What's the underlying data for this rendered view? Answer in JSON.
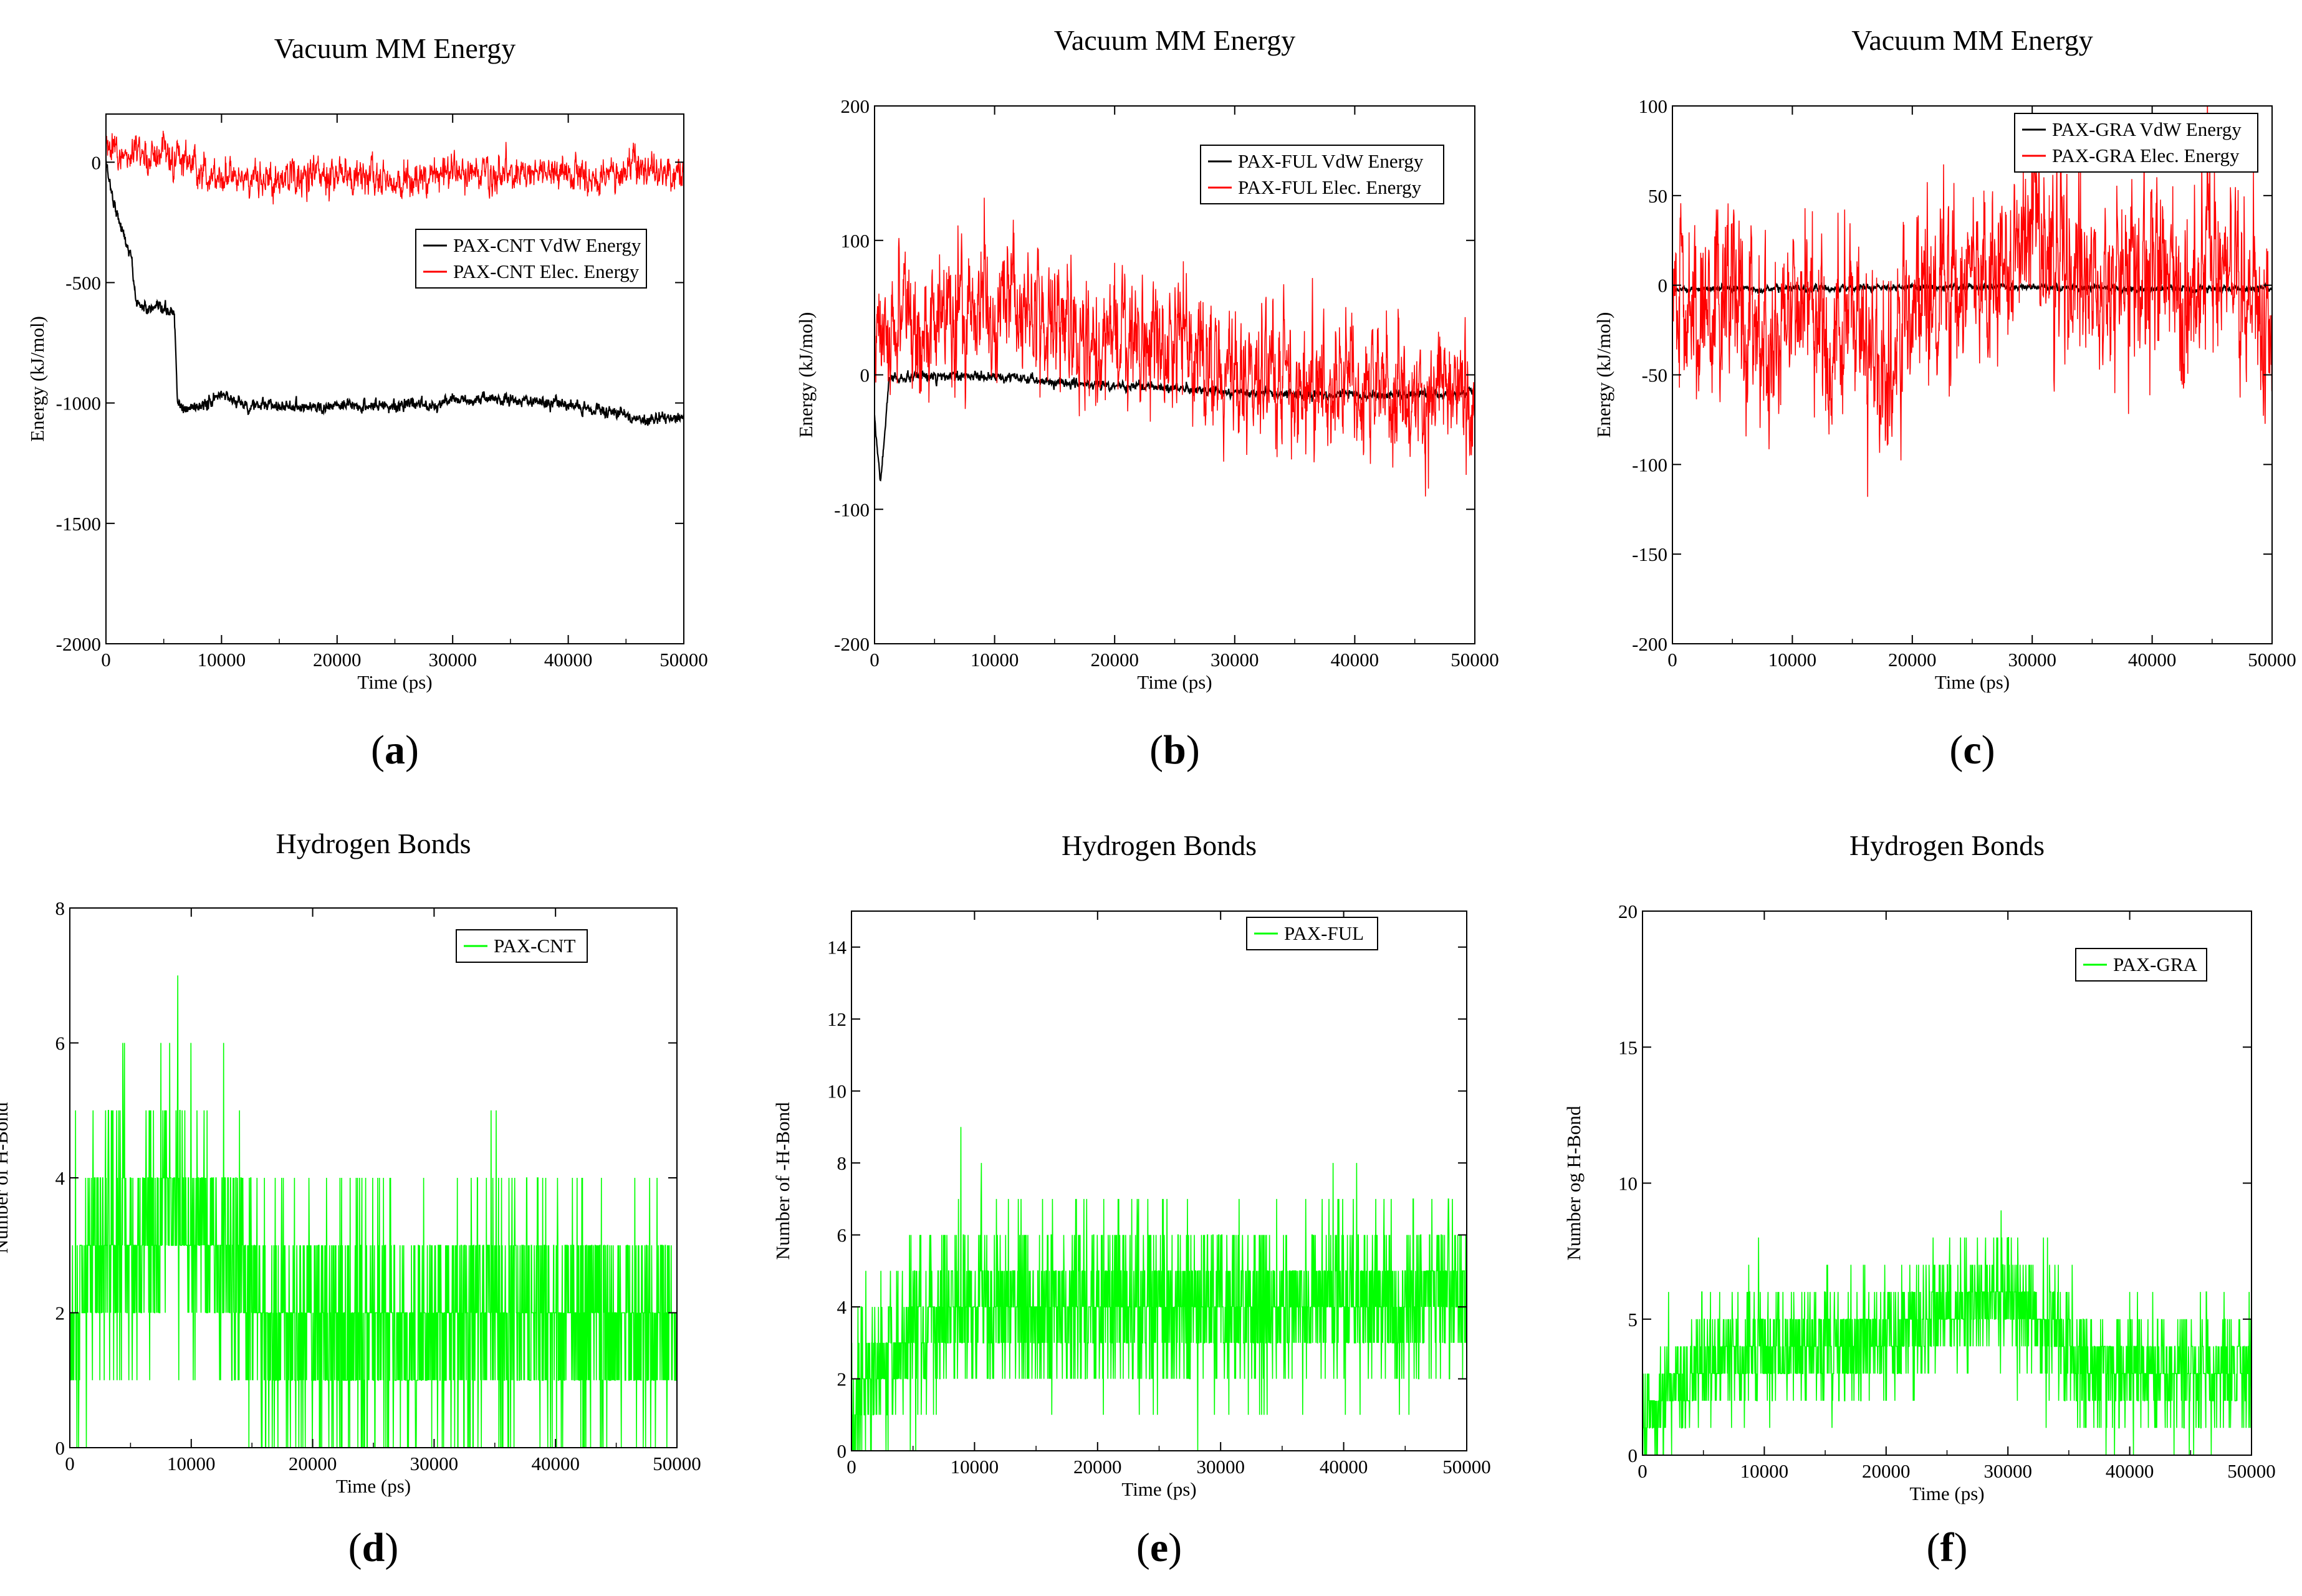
{
  "figure": {
    "panel_labels": [
      "a",
      "b",
      "c",
      "d",
      "e",
      "f"
    ]
  },
  "chart_data": [
    {
      "id": "a",
      "type": "line",
      "title": "Vacuum MM Energy",
      "xlabel": "Time (ps)",
      "ylabel": "Energy (kJ/mol)",
      "xlim": [
        0,
        50000
      ],
      "ylim": [
        -2000,
        200
      ],
      "xticks": [
        0,
        10000,
        20000,
        30000,
        40000,
        50000
      ],
      "yticks": [
        -2000,
        -1500,
        -1000,
        -500,
        0
      ],
      "legend_position": "middle-right",
      "series": [
        {
          "name": "PAX-CNT VdW Energy",
          "color": "#000000",
          "noise": 15,
          "points": [
            [
              0,
              0
            ],
            [
              600,
              -150
            ],
            [
              1500,
              -300
            ],
            [
              2200,
              -400
            ],
            [
              2600,
              -580
            ],
            [
              3500,
              -610
            ],
            [
              5900,
              -620
            ],
            [
              6200,
              -1000
            ],
            [
              6600,
              -1030
            ],
            [
              9000,
              -1000
            ],
            [
              10000,
              -960
            ],
            [
              12000,
              -1010
            ],
            [
              20000,
              -1015
            ],
            [
              28000,
              -1005
            ],
            [
              30000,
              -990
            ],
            [
              35000,
              -985
            ],
            [
              40000,
              -1010
            ],
            [
              44000,
              -1040
            ],
            [
              46000,
              -1070
            ],
            [
              50000,
              -1060
            ]
          ]
        },
        {
          "name": "PAX-CNT Elec. Energy",
          "color": "#ff0000",
          "noise": 45,
          "points": [
            [
              0,
              60
            ],
            [
              2000,
              20
            ],
            [
              4000,
              40
            ],
            [
              6000,
              20
            ],
            [
              8000,
              -30
            ],
            [
              10000,
              -60
            ],
            [
              14000,
              -80
            ],
            [
              18000,
              -40
            ],
            [
              22000,
              -60
            ],
            [
              26000,
              -80
            ],
            [
              30000,
              -40
            ],
            [
              34000,
              -60
            ],
            [
              38000,
              -30
            ],
            [
              42000,
              -70
            ],
            [
              46000,
              -30
            ],
            [
              50000,
              -50
            ]
          ]
        }
      ]
    },
    {
      "id": "b",
      "type": "line",
      "title": "Vacuum MM Energy",
      "xlabel": "Time (ps)",
      "ylabel": "Energy (kJ/mol)",
      "xlim": [
        0,
        50000
      ],
      "ylim": [
        -200,
        200
      ],
      "xticks": [
        0,
        10000,
        20000,
        30000,
        40000,
        50000
      ],
      "yticks": [
        -200,
        -100,
        0,
        100,
        200
      ],
      "legend_position": "top-right",
      "series": [
        {
          "name": "PAX-FUL VdW Energy",
          "color": "#000000",
          "noise": 2,
          "points": [
            [
              0,
              -30
            ],
            [
              200,
              -55
            ],
            [
              500,
              -80
            ],
            [
              800,
              -50
            ],
            [
              1200,
              -3
            ],
            [
              4000,
              -2
            ],
            [
              8000,
              -1
            ],
            [
              12000,
              -3
            ],
            [
              16000,
              -6
            ],
            [
              20000,
              -8
            ],
            [
              24000,
              -9
            ],
            [
              28000,
              -12
            ],
            [
              32000,
              -14
            ],
            [
              36000,
              -15
            ],
            [
              40000,
              -15
            ],
            [
              44000,
              -15
            ],
            [
              48000,
              -14
            ],
            [
              50000,
              -13
            ]
          ]
        },
        {
          "name": "PAX-FUL Elec. Energy",
          "color": "#ff0000",
          "noise": 28,
          "points": [
            [
              0,
              30
            ],
            [
              3000,
              40
            ],
            [
              6000,
              40
            ],
            [
              9000,
              50
            ],
            [
              12000,
              55
            ],
            [
              14000,
              40
            ],
            [
              17000,
              25
            ],
            [
              20000,
              20
            ],
            [
              23000,
              20
            ],
            [
              26000,
              15
            ],
            [
              29000,
              10
            ],
            [
              32000,
              0
            ],
            [
              36000,
              -5
            ],
            [
              40000,
              -10
            ],
            [
              44000,
              -20
            ],
            [
              47000,
              -10
            ],
            [
              50000,
              -10
            ]
          ]
        }
      ]
    },
    {
      "id": "c",
      "type": "line",
      "title": "Vacuum MM Energy",
      "xlabel": "Time (ps)",
      "ylabel": "Energy (kJ/mol)",
      "xlim": [
        0,
        50000
      ],
      "ylim": [
        -200,
        100
      ],
      "xticks": [
        0,
        10000,
        20000,
        30000,
        40000,
        50000
      ],
      "yticks": [
        -200,
        -150,
        -100,
        -50,
        0,
        50,
        100
      ],
      "legend_position": "top-right",
      "series": [
        {
          "name": "PAX-GRA VdW Energy",
          "color": "#000000",
          "noise": 1,
          "points": [
            [
              0,
              -2
            ],
            [
              10000,
              -2
            ],
            [
              20000,
              -1
            ],
            [
              30000,
              -1
            ],
            [
              40000,
              -2
            ],
            [
              50000,
              -2
            ]
          ]
        },
        {
          "name": "PAX-GRA Elec. Energy",
          "color": "#ff0000",
          "noise": 30,
          "points": [
            [
              0,
              0
            ],
            [
              2000,
              -20
            ],
            [
              4500,
              10
            ],
            [
              6000,
              -20
            ],
            [
              8000,
              -50
            ],
            [
              10000,
              0
            ],
            [
              12000,
              -30
            ],
            [
              15000,
              -30
            ],
            [
              18000,
              -50
            ],
            [
              20000,
              -10
            ],
            [
              24000,
              0
            ],
            [
              28000,
              15
            ],
            [
              30000,
              25
            ],
            [
              32000,
              15
            ],
            [
              35000,
              0
            ],
            [
              38000,
              10
            ],
            [
              42000,
              0
            ],
            [
              45000,
              10
            ],
            [
              48000,
              0
            ],
            [
              50000,
              -10
            ]
          ]
        }
      ]
    },
    {
      "id": "d",
      "type": "line",
      "title": "Hydrogen Bonds",
      "xlabel": "Time (ps)",
      "ylabel": "Number of H-Bond",
      "xlim": [
        0,
        50000
      ],
      "ylim": [
        0,
        8
      ],
      "xticks": [
        0,
        10000,
        20000,
        30000,
        40000,
        50000
      ],
      "yticks": [
        0,
        2,
        4,
        6,
        8
      ],
      "legend_position": "top-right",
      "series": [
        {
          "name": "PAX-CNT",
          "color": "#00ff00",
          "noise": 1.8,
          "max": 8,
          "points": [
            [
              0,
              1.5
            ],
            [
              2000,
              3
            ],
            [
              5000,
              3.2
            ],
            [
              9000,
              3.5
            ],
            [
              12000,
              3
            ],
            [
              15000,
              2.5
            ],
            [
              16000,
              1.7
            ],
            [
              30000,
              1.8
            ],
            [
              40000,
              2
            ],
            [
              50000,
              1.7
            ]
          ]
        }
      ]
    },
    {
      "id": "e",
      "type": "line",
      "title": "Hydrogen Bonds",
      "xlabel": "Time (ps)",
      "ylabel": "Number of -H-Bond",
      "xlim": [
        0,
        50000
      ],
      "ylim": [
        0,
        15
      ],
      "xticks": [
        0,
        10000,
        20000,
        30000,
        40000,
        50000
      ],
      "yticks": [
        0,
        2,
        4,
        6,
        8,
        10,
        12,
        14
      ],
      "legend_position": "top-right",
      "series": [
        {
          "name": "PAX-FUL",
          "color": "#00ff00",
          "noise": 2.2,
          "max": 10,
          "points": [
            [
              0,
              0.5
            ],
            [
              1500,
              2
            ],
            [
              4000,
              3
            ],
            [
              8000,
              3.8
            ],
            [
              15000,
              4.2
            ],
            [
              25000,
              4
            ],
            [
              35000,
              4
            ],
            [
              45000,
              4.2
            ],
            [
              50000,
              4.5
            ]
          ]
        }
      ]
    },
    {
      "id": "f",
      "type": "line",
      "title": "Hydrogen Bonds",
      "xlabel": "Time (ps)",
      "ylabel": "Number og H-Bond",
      "xlim": [
        0,
        50000
      ],
      "ylim": [
        0,
        20
      ],
      "xticks": [
        0,
        10000,
        20000,
        30000,
        40000,
        50000
      ],
      "yticks": [
        0,
        5,
        10,
        15,
        20
      ],
      "legend_position": "top-right",
      "series": [
        {
          "name": "PAX-GRA",
          "color": "#00ff00",
          "noise": 2,
          "max": 10,
          "points": [
            [
              0,
              1
            ],
            [
              2000,
              2.5
            ],
            [
              5000,
              3.5
            ],
            [
              15000,
              4
            ],
            [
              20000,
              4.2
            ],
            [
              26000,
              5.5
            ],
            [
              30000,
              6
            ],
            [
              34000,
              4.5
            ],
            [
              36000,
              3.2
            ],
            [
              45000,
              3
            ],
            [
              50000,
              3
            ]
          ]
        }
      ]
    }
  ]
}
